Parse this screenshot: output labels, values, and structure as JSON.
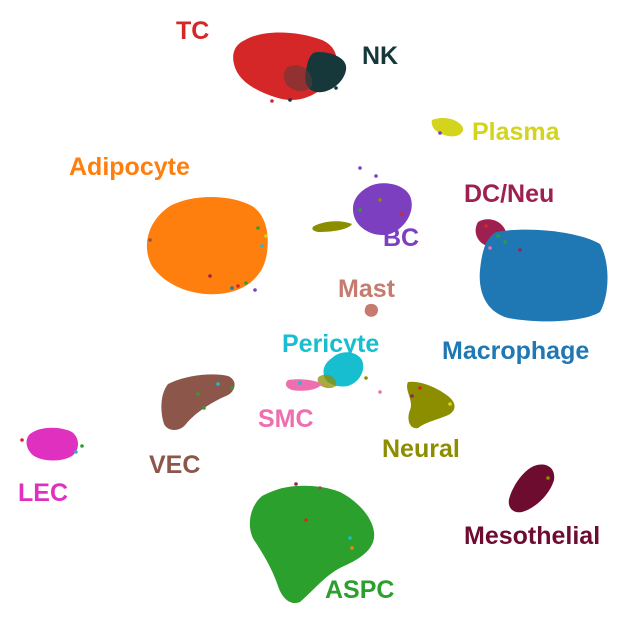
{
  "chart_data": {
    "type": "scatter",
    "title": "",
    "xlabel": "",
    "ylabel": "",
    "axes_visible": false,
    "grid": false,
    "legend": "none",
    "clusters": [
      {
        "label": "TC",
        "color": "#d62728"
      },
      {
        "label": "NK",
        "color": "#17383a"
      },
      {
        "label": "Plasma",
        "color": "#d4d41c"
      },
      {
        "label": "Adipocyte",
        "color": "#ff7f0e"
      },
      {
        "label": "DC/Neu",
        "color": "#9e2050"
      },
      {
        "label": "BC",
        "color": "#7b3fc0"
      },
      {
        "label": "Mast",
        "color": "#c67b6f"
      },
      {
        "label": "Macrophage",
        "color": "#1f77b4"
      },
      {
        "label": "Pericyte",
        "color": "#17becf"
      },
      {
        "label": "SMC",
        "color": "#ee6fb0"
      },
      {
        "label": "VEC",
        "color": "#8c564b"
      },
      {
        "label": "Neural",
        "color": "#8d8d00"
      },
      {
        "label": "LEC",
        "color": "#e030c0"
      },
      {
        "label": "Mesothelial",
        "color": "#6e0c30"
      },
      {
        "label": "ASPC",
        "color": "#2ca02c"
      }
    ]
  }
}
